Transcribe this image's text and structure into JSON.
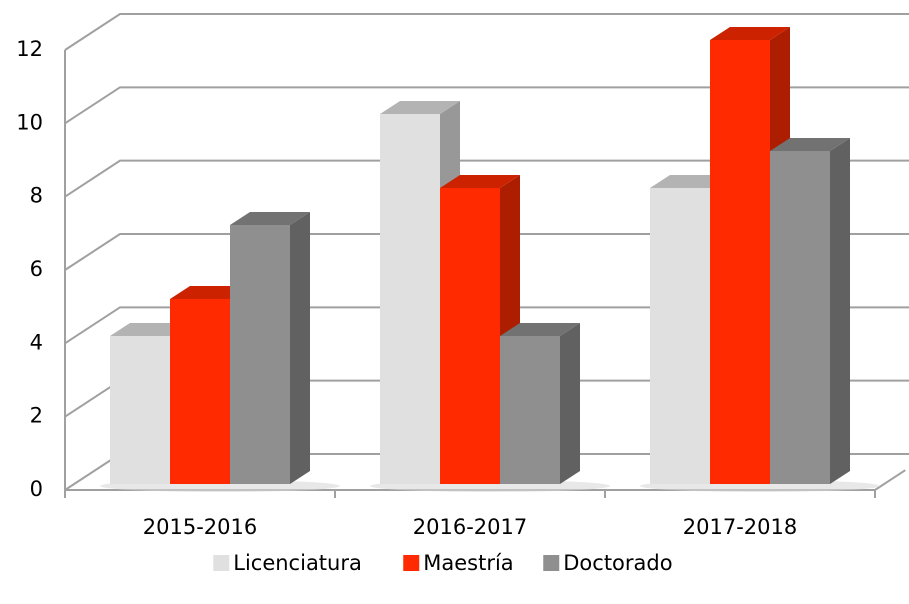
{
  "chart_data": {
    "type": "bar3d",
    "categories": [
      "2015-2016",
      "2016-2017",
      "2017-2018"
    ],
    "series": [
      {
        "name": "Licenciatura",
        "color": "#e0e0e0",
        "values": [
          4,
          10,
          8
        ]
      },
      {
        "name": "Maestría",
        "color": "#ff2a00",
        "values": [
          5,
          8,
          12
        ]
      },
      {
        "name": "Doctorado",
        "color": "#8f8f8f",
        "values": [
          7,
          4,
          9
        ]
      }
    ],
    "ylim": [
      0,
      12
    ],
    "yticks": [
      0,
      2,
      4,
      6,
      8,
      10,
      12
    ],
    "grid": true,
    "legend": "bottom"
  }
}
